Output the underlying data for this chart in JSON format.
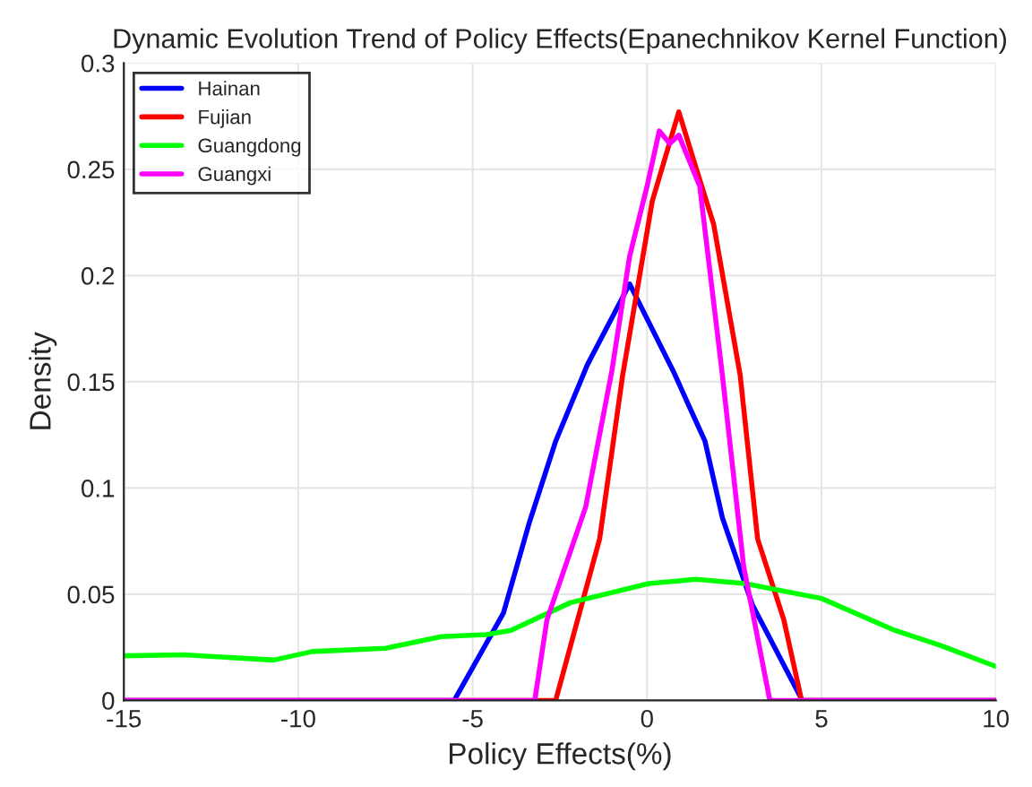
{
  "chart_data": {
    "type": "line",
    "title": "Dynamic Evolution Trend of Policy Effects(Epanechnikov Kernel Function)",
    "xlabel": "Policy Effects(%)",
    "ylabel": "Density",
    "xlim": [
      -15,
      10
    ],
    "xticks": [
      -15,
      -10,
      -5,
      0,
      5,
      10
    ],
    "ylim": [
      0,
      0.3
    ],
    "yticks": [
      0,
      0.05,
      0.1,
      0.15,
      0.2,
      0.25,
      0.3
    ],
    "grid": true,
    "legend": "top left",
    "marker": "none",
    "line_style": "solid",
    "series": [
      {
        "name": "Hainan",
        "color": "#0000ff",
        "x": [
          -15,
          -5.53,
          -4.12,
          -3.37,
          -2.62,
          -1.71,
          -0.5,
          0.75,
          1.66,
          2.16,
          3.02,
          4.45,
          10
        ],
        "values": [
          0,
          0,
          0.041,
          0.084,
          0.122,
          0.158,
          0.196,
          0.155,
          0.122,
          0.086,
          0.045,
          0,
          0
        ]
      },
      {
        "name": "Fujian",
        "color": "#ff0000",
        "x": [
          -15,
          -2.62,
          -1.36,
          -0.7,
          0.15,
          0.91,
          1.51,
          1.91,
          2.67,
          3.17,
          3.92,
          4.43,
          10
        ],
        "values": [
          0,
          0,
          0.076,
          0.153,
          0.235,
          0.277,
          0.245,
          0.224,
          0.153,
          0.076,
          0.038,
          0,
          0
        ]
      },
      {
        "name": "Guangdong",
        "color": "#00ff00",
        "x": [
          -15,
          -13.3,
          -10.7,
          -9.6,
          -7.5,
          -5.9,
          -4.6,
          -3.9,
          -2.2,
          0.05,
          1.4,
          2.8,
          5.0,
          7.1,
          8.4,
          10
        ],
        "values": [
          0.021,
          0.0215,
          0.019,
          0.023,
          0.0245,
          0.03,
          0.031,
          0.033,
          0.046,
          0.055,
          0.057,
          0.055,
          0.048,
          0.033,
          0.026,
          0.016
        ]
      },
      {
        "name": "Guangxi",
        "color": "#ff00ff",
        "x": [
          -15,
          -3.22,
          -2.87,
          -1.76,
          -1.01,
          -0.5,
          0.0,
          0.35,
          0.65,
          0.91,
          1.51,
          2.16,
          2.77,
          3.52,
          10
        ],
        "values": [
          0,
          0,
          0.038,
          0.091,
          0.155,
          0.209,
          0.242,
          0.268,
          0.262,
          0.266,
          0.242,
          0.153,
          0.063,
          0,
          0
        ]
      }
    ]
  }
}
